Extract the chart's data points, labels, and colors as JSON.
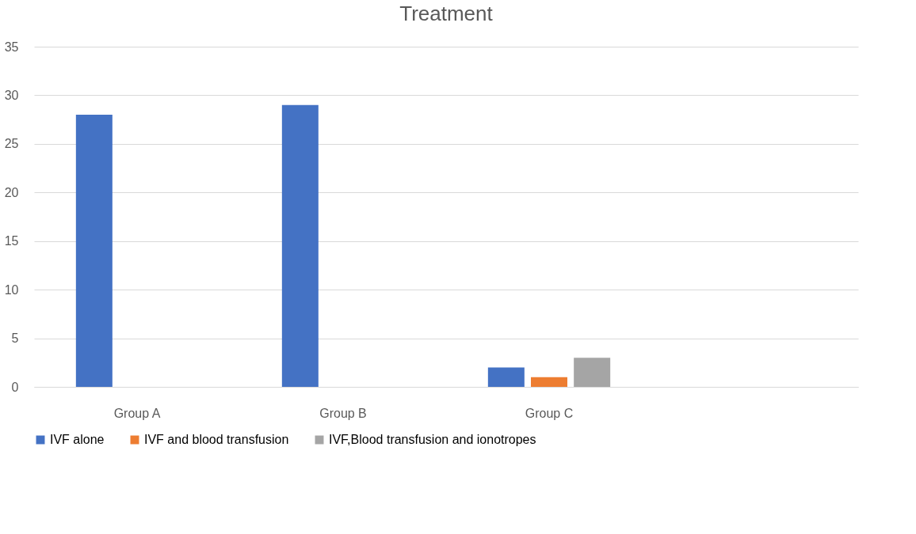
{
  "chart_data": {
    "type": "bar",
    "title": "Treatment",
    "categories": [
      "Group A",
      "Group B",
      "Group C",
      null
    ],
    "series": [
      {
        "name": "IVF alone",
        "color": "#4472c4",
        "values": [
          28,
          29,
          2,
          null
        ]
      },
      {
        "name": "IVF and blood transfusion",
        "color": "#ed7d31",
        "values": [
          0,
          0,
          1,
          null
        ]
      },
      {
        "name": "IVF,Blood transfusion and ionotropes",
        "color": "#a5a5a5",
        "values": [
          0,
          0,
          3,
          null
        ]
      }
    ],
    "ylim": [
      0,
      35
    ],
    "yticks": [
      0,
      5,
      10,
      15,
      20,
      25,
      30,
      35
    ],
    "grid": "y",
    "legend": "bottom"
  }
}
